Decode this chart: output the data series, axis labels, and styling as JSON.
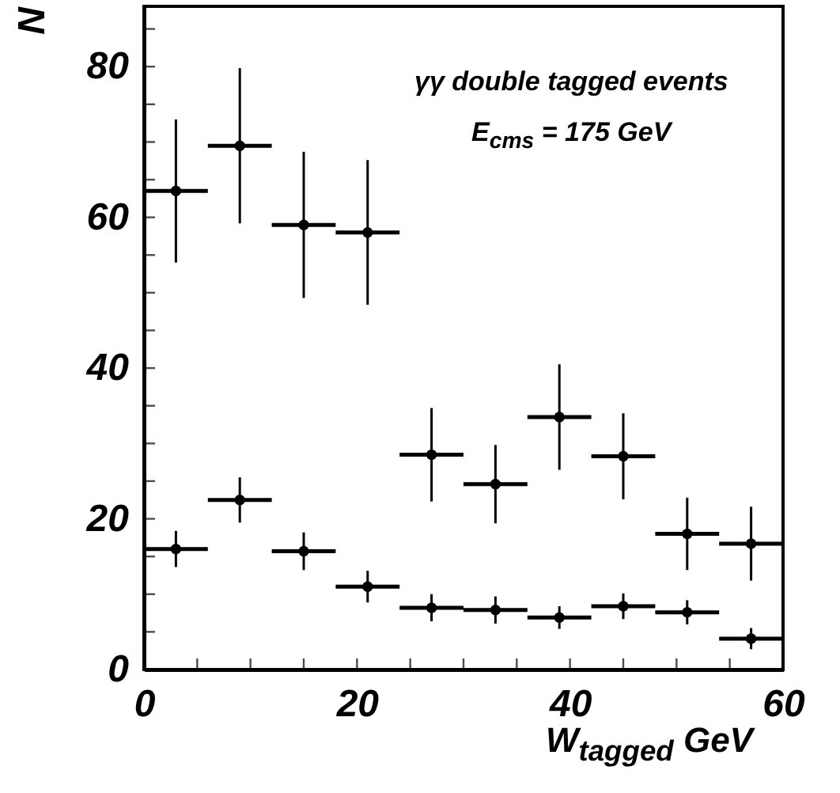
{
  "chart_data": {
    "type": "scatter",
    "xlabel": "W$_{tagged}$  GeV",
    "ylabel": "N",
    "annotations": [
      "γγ double tagged events",
      "E$_{cms}$ = 175 GeV"
    ],
    "x": [
      3,
      9,
      15,
      21,
      27,
      33,
      39,
      45,
      51,
      57
    ],
    "series": [
      {
        "color": "#000000",
        "values": [
          63.5,
          69.5,
          59,
          58,
          28.5,
          24.6,
          33.5,
          28.3,
          18,
          16.7
        ],
        "errors": [
          9.5,
          10.3,
          9.7,
          9.6,
          6.2,
          5.2,
          7,
          5.7,
          4.8,
          4.9
        ],
        "xerrors": [
          3,
          3,
          3,
          3,
          3,
          3,
          3,
          3,
          3,
          3
        ]
      },
      {
        "color": "#000000",
        "values": [
          16,
          22.5,
          15.7,
          11,
          8.2,
          7.9,
          6.9,
          8.4,
          7.6,
          4.1
        ],
        "errors": [
          2.4,
          3,
          2.5,
          2.1,
          1.8,
          1.8,
          1.5,
          1.7,
          1.6,
          1.4
        ],
        "xerrors": [
          3,
          3,
          3,
          3,
          3,
          3,
          3,
          3,
          3,
          3
        ]
      }
    ],
    "marker": "circle",
    "xlim": [
      0,
      60
    ],
    "ylim": [
      0,
      88
    ],
    "xticks": [
      0,
      {
        "value": 5,
        "label": null
      },
      {
        "value": 10,
        "label": null
      },
      {
        "value": 15,
        "label": null
      },
      20,
      {
        "value": 25,
        "label": null
      },
      {
        "value": 30,
        "label": null
      },
      {
        "value": 35,
        "label": null
      },
      40,
      {
        "value": 45,
        "label": null
      },
      {
        "value": 50,
        "label": null
      },
      {
        "value": 55,
        "label": null
      },
      60
    ],
    "yticks": [
      0,
      {
        "value": 5,
        "label": null
      },
      {
        "value": 10,
        "label": null
      },
      {
        "value": 15,
        "label": null
      },
      20,
      {
        "value": 25,
        "label": null
      },
      {
        "value": 30,
        "label": null
      },
      {
        "value": 35,
        "label": null
      },
      40,
      {
        "value": 45,
        "label": null
      },
      {
        "value": 50,
        "label": null
      },
      {
        "value": 55,
        "label": null
      },
      60,
      {
        "value": 65,
        "label": null
      },
      {
        "value": 70,
        "label": null
      },
      {
        "value": 75,
        "label": null
      },
      80,
      {
        "value": 85,
        "label": null
      }
    ],
    "grid": false
  }
}
